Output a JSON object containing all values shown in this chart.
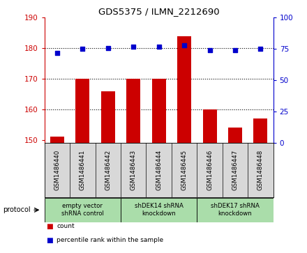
{
  "title": "GDS5375 / ILMN_2212690",
  "samples": [
    "GSM1486440",
    "GSM1486441",
    "GSM1486442",
    "GSM1486443",
    "GSM1486444",
    "GSM1486445",
    "GSM1486446",
    "GSM1486447",
    "GSM1486448"
  ],
  "counts": [
    151,
    170,
    166,
    170,
    170,
    184,
    160,
    154,
    157
  ],
  "percentiles": [
    72,
    75,
    76,
    77,
    77,
    78,
    74,
    74,
    75
  ],
  "ylim_left": [
    149,
    190
  ],
  "ylim_right": [
    0,
    100
  ],
  "yticks_left": [
    150,
    160,
    170,
    180,
    190
  ],
  "yticks_right": [
    0,
    25,
    50,
    75,
    100
  ],
  "bar_color": "#cc0000",
  "dot_color": "#0000cc",
  "bar_bottom": 149,
  "group_info": [
    {
      "start": 0,
      "end": 3,
      "label": "empty vector\nshRNA control"
    },
    {
      "start": 3,
      "end": 6,
      "label": "shDEK14 shRNA\nknockdown"
    },
    {
      "start": 6,
      "end": 9,
      "label": "shDEK17 shRNA\nknockdown"
    }
  ],
  "group_color": "#aaddaa",
  "sample_box_color": "#d8d8d8",
  "legend_count_label": "count",
  "legend_percentile_label": "percentile rank within the sample",
  "plot_bg": "#ffffff"
}
